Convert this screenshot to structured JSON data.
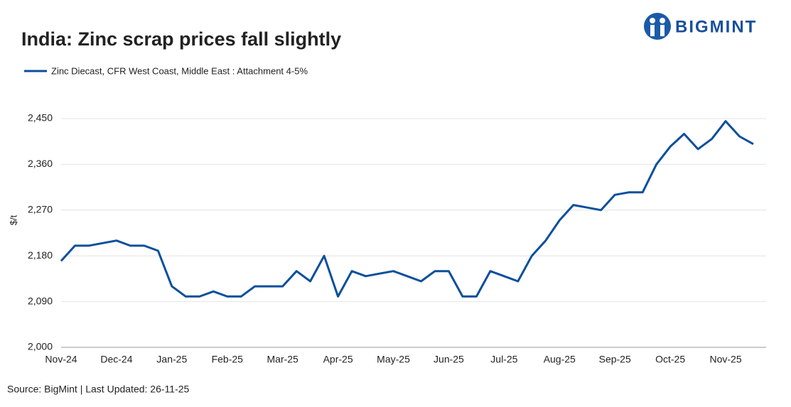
{
  "brand": "BIGMINT",
  "chart_data": {
    "type": "line",
    "title": "India: Zinc scrap prices fall slightly",
    "y_label": "$/t",
    "source": "Source: BigMint | Last Updated: 26-11-25",
    "categories": [
      "Nov-24",
      null,
      null,
      null,
      "Dec-24",
      null,
      null,
      null,
      "Jan-25",
      null,
      null,
      null,
      "Feb-25",
      null,
      null,
      null,
      "Mar-25",
      null,
      null,
      null,
      "Apr-25",
      null,
      null,
      null,
      "May-25",
      null,
      null,
      null,
      "Jun-25",
      null,
      null,
      null,
      "Jul-25",
      null,
      null,
      null,
      "Aug-25",
      null,
      null,
      null,
      "Sep-25",
      null,
      null,
      null,
      "Oct-25",
      null,
      null,
      null,
      "Nov-25",
      null,
      null
    ],
    "series": [
      {
        "name": "Zinc Diecast, CFR West Coast, Middle East : Attachment 4-5%",
        "color": "#0b4f9c",
        "values": [
          2170,
          2200,
          2200,
          2205,
          2210,
          2200,
          2200,
          2190,
          2120,
          2100,
          2100,
          2110,
          2100,
          2100,
          2120,
          2120,
          2120,
          2150,
          2130,
          2180,
          2100,
          2150,
          2140,
          2145,
          2150,
          2140,
          2130,
          2150,
          2150,
          2100,
          2100,
          2150,
          2140,
          2130,
          2180,
          2210,
          2250,
          2280,
          2275,
          2270,
          2300,
          2305,
          2305,
          2360,
          2395,
          2420,
          2390,
          2410,
          2445,
          2415,
          2400
        ]
      }
    ],
    "ylim": [
      2000,
      2450
    ],
    "yticks": [
      {
        "value": 2000,
        "label": "2,000"
      },
      {
        "value": 2090,
        "label": "2,090"
      },
      {
        "value": 2180,
        "label": "2,180"
      },
      {
        "value": 2270,
        "label": "2,270"
      },
      {
        "value": 2360,
        "label": "2,360"
      },
      {
        "value": 2450,
        "label": "2,450"
      }
    ],
    "grid": true
  }
}
